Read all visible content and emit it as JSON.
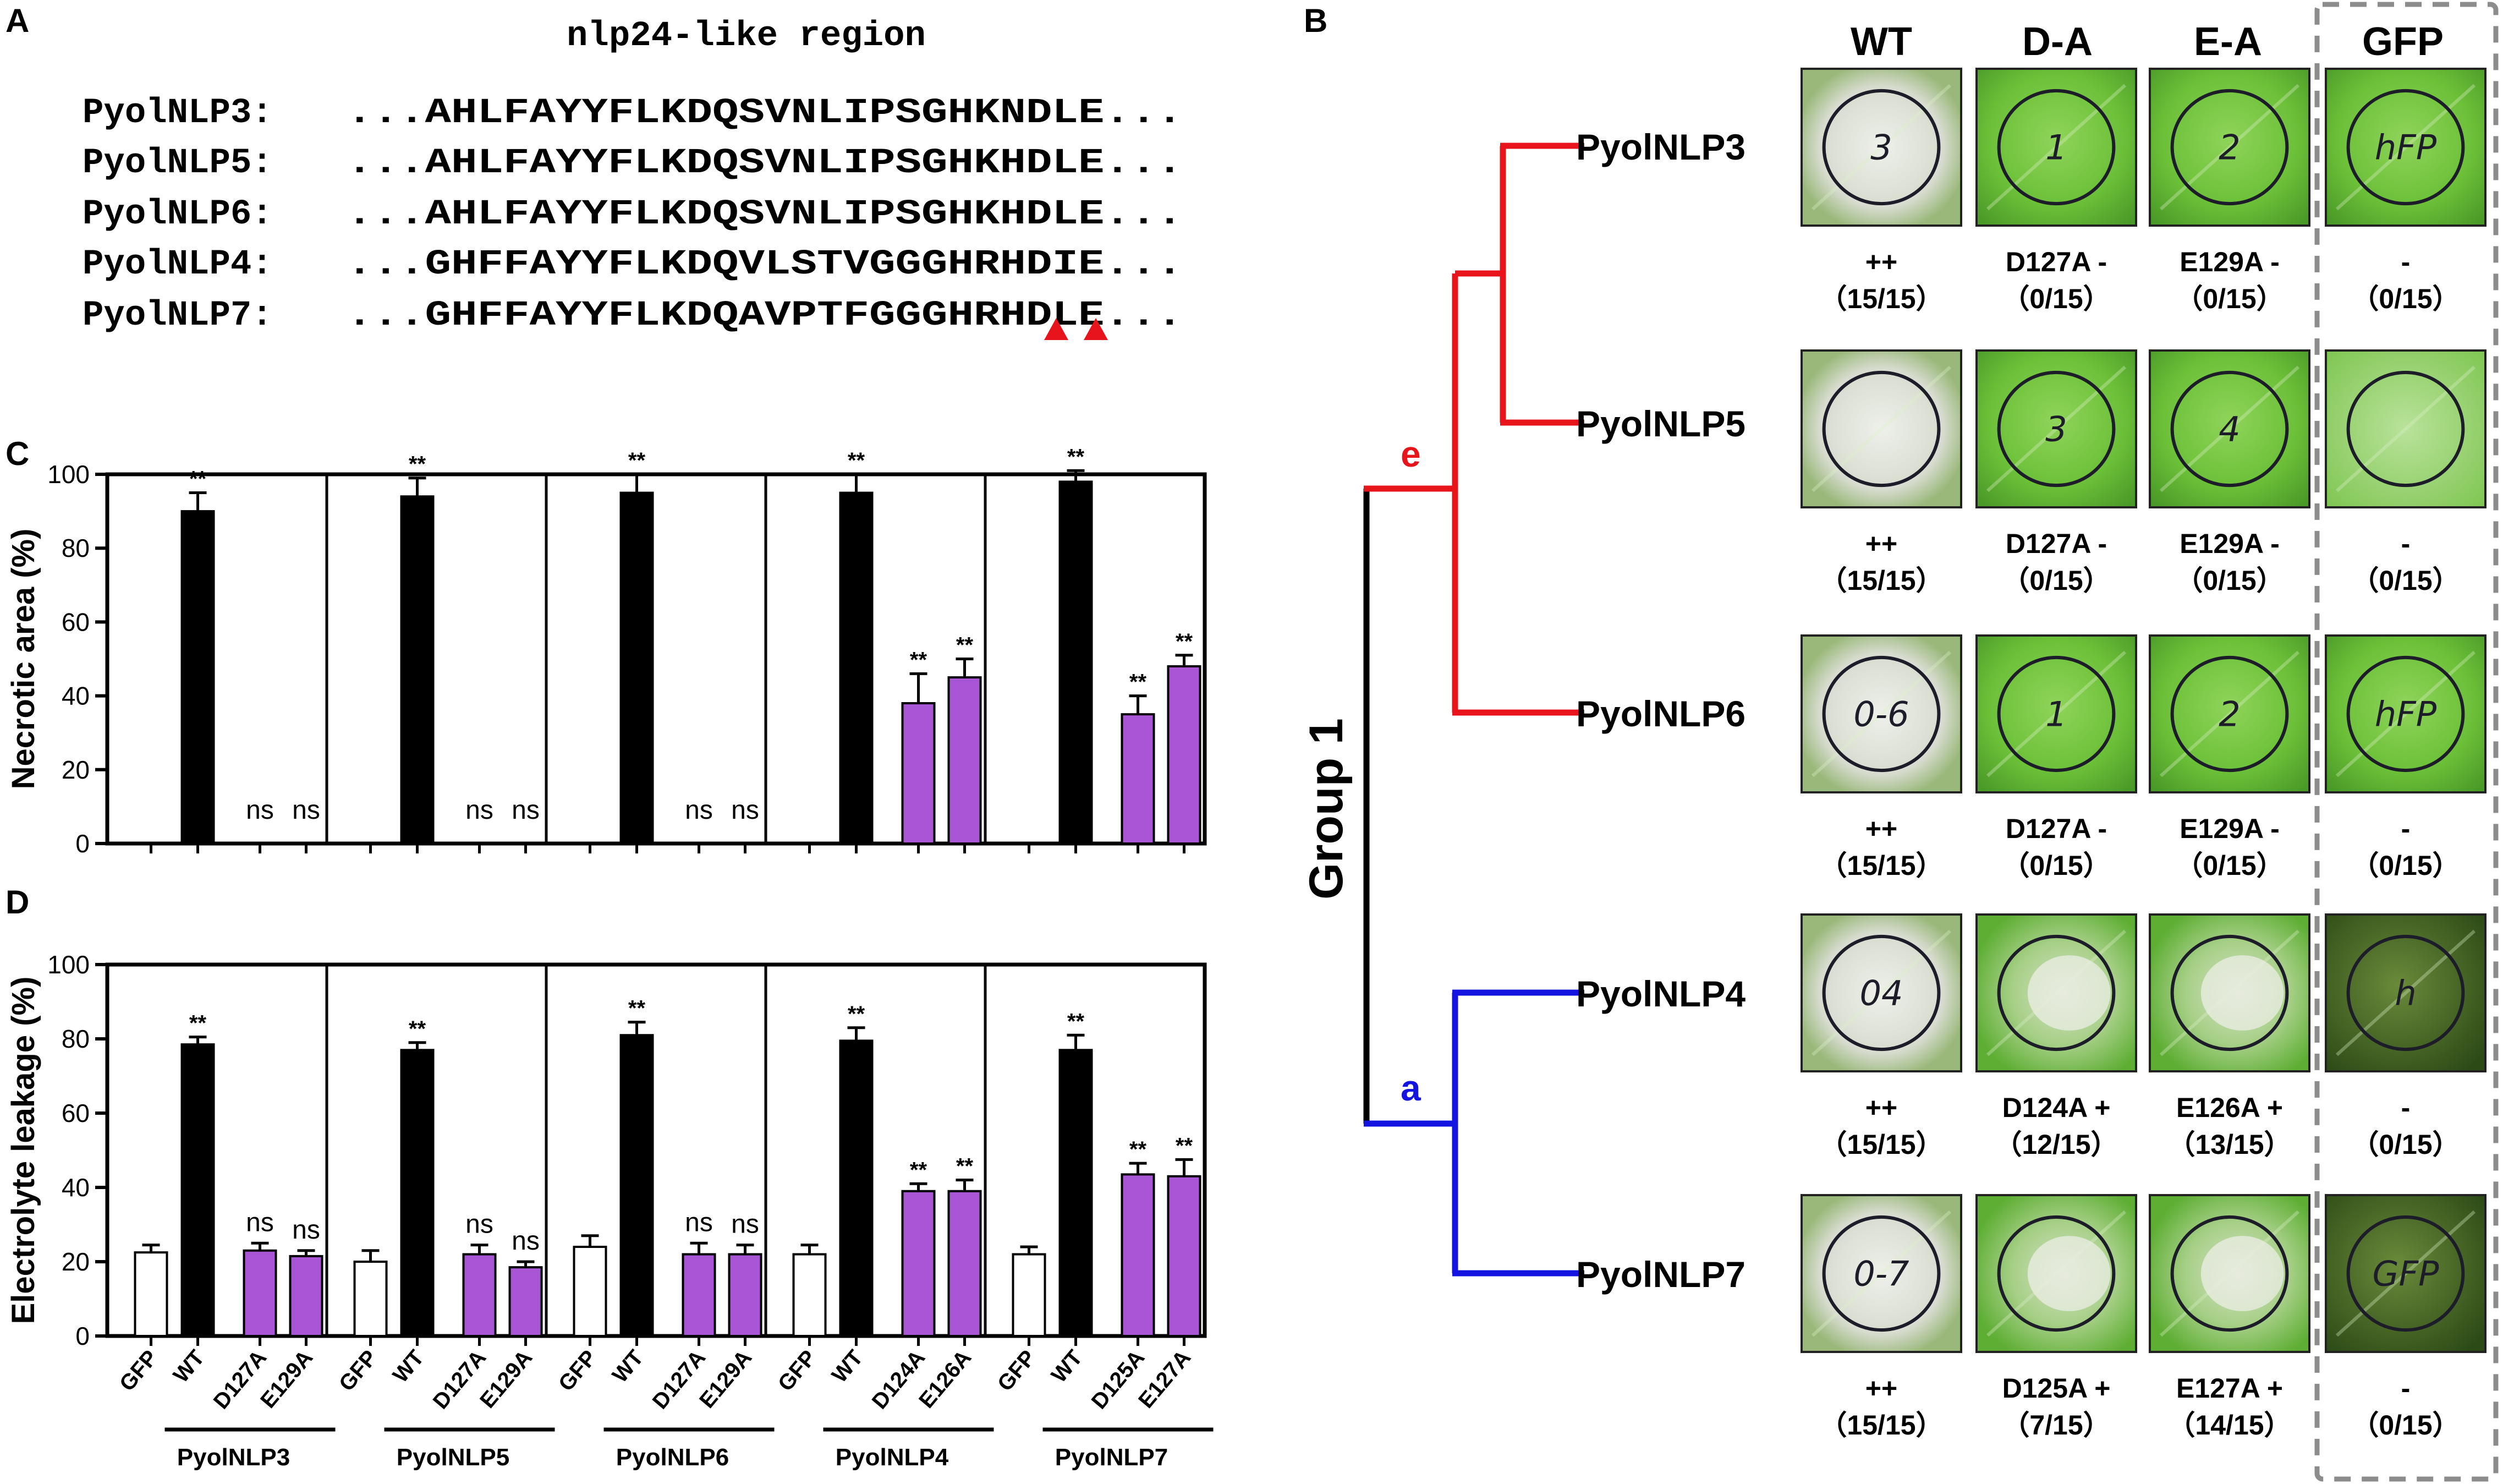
{
  "panels": {
    "a": "A",
    "b": "B",
    "c": "C",
    "d": "D"
  },
  "alignment": {
    "title": "nlp24-like region",
    "rows": [
      {
        "name": "PyolNLP3:",
        "seq": "...AHLFAYYFLKDQSVNLIPSGHKNDLE..."
      },
      {
        "name": "PyolNLP5:",
        "seq": "...AHLFAYYFLKDQSVNLIPSGHKHDLE..."
      },
      {
        "name": "PyolNLP6:",
        "seq": "...AHLFAYYFLKDQSVNLIPSGHKHDLE..."
      },
      {
        "name": "PyolNLP4:",
        "seq": "...GHFFAYYFLKDQVLSTVGGGHRHDIE..."
      },
      {
        "name": "PyolNLP7:",
        "seq": "...GHFFAYYFLKDQAVPTFGGGHRHDLE..."
      }
    ],
    "marker_color": "#e8141b"
  },
  "chart_data": [
    {
      "type": "bar",
      "ylabel": "Necrotic area (%)",
      "ylim": [
        0,
        100
      ],
      "yticks": [
        "0",
        "20",
        "40",
        "60",
        "80",
        "100"
      ],
      "groups": [
        {
          "name": "PyolNLP3",
          "values": [
            0,
            90,
            0,
            0
          ],
          "errors": [
            0,
            5,
            0,
            0
          ],
          "sig": [
            "",
            "**",
            "ns",
            "ns"
          ]
        },
        {
          "name": "PyolNLP5",
          "values": [
            0,
            94,
            0,
            0
          ],
          "errors": [
            0,
            5,
            0,
            0
          ],
          "sig": [
            "",
            "**",
            "ns",
            "ns"
          ]
        },
        {
          "name": "PyolNLP6",
          "values": [
            0,
            95,
            0,
            0
          ],
          "errors": [
            0,
            5,
            0,
            0
          ],
          "sig": [
            "",
            "**",
            "ns",
            "ns"
          ]
        },
        {
          "name": "PyolNLP4",
          "values": [
            0,
            95,
            38,
            45
          ],
          "errors": [
            0,
            5,
            8,
            5
          ],
          "sig": [
            "",
            "**",
            "**",
            "**"
          ]
        },
        {
          "name": "PyolNLP7",
          "values": [
            0,
            98,
            35,
            48
          ],
          "errors": [
            0,
            3,
            5,
            3
          ],
          "sig": [
            "",
            "**",
            "**",
            "**"
          ]
        }
      ]
    },
    {
      "type": "bar",
      "ylabel": "Electrolyte leakage (%)",
      "ylim": [
        0,
        100
      ],
      "yticks": [
        "0",
        "20",
        "40",
        "60",
        "80",
        "100"
      ],
      "groups": [
        {
          "name": "PyolNLP3",
          "categories": [
            "GFP",
            "WT",
            "D127A",
            "E129A"
          ],
          "values": [
            22.5,
            78.5,
            23,
            21.5
          ],
          "errors": [
            2,
            2,
            2,
            1.5
          ],
          "sig": [
            "",
            "**",
            "ns",
            "ns"
          ]
        },
        {
          "name": "PyolNLP5",
          "categories": [
            "GFP",
            "WT",
            "D127A",
            "E129A"
          ],
          "values": [
            20,
            77,
            22,
            18.5
          ],
          "errors": [
            3,
            2,
            2.5,
            1.5
          ],
          "sig": [
            "",
            "**",
            "ns",
            "ns"
          ]
        },
        {
          "name": "PyolNLP6",
          "categories": [
            "GFP",
            "WT",
            "D127A",
            "E129A"
          ],
          "values": [
            24,
            81,
            22,
            22
          ],
          "errors": [
            3,
            3.5,
            3,
            2.5
          ],
          "sig": [
            "",
            "**",
            "ns",
            "ns"
          ]
        },
        {
          "name": "PyolNLP4",
          "categories": [
            "GFP",
            "WT",
            "D124A",
            "E126A"
          ],
          "values": [
            22,
            79.5,
            39,
            39
          ],
          "errors": [
            2.5,
            3.5,
            2,
            3
          ],
          "sig": [
            "",
            "**",
            "**",
            "**"
          ]
        },
        {
          "name": "PyolNLP7",
          "categories": [
            "GFP",
            "WT",
            "D125A",
            "E127A"
          ],
          "values": [
            22,
            77,
            43.5,
            43
          ],
          "errors": [
            2,
            4,
            3,
            4.5
          ],
          "sig": [
            "",
            "**",
            "**",
            "**"
          ]
        }
      ]
    }
  ],
  "bar_colors": {
    "GFP": "#ffffff",
    "WT": "#000000",
    "mutant": "#a855d6"
  },
  "tree": {
    "group_label": "Group 1",
    "clades": [
      {
        "label": "e",
        "color": "#e8141b"
      },
      {
        "label": "a",
        "color": "#1414e0"
      }
    ],
    "leaves": [
      "PyolNLP3",
      "PyolNLP5",
      "PyolNLP6",
      "PyolNLP4",
      "PyolNLP7"
    ]
  },
  "photo_grid": {
    "columns": [
      "WT",
      "D-A",
      "E-A",
      "GFP"
    ],
    "rows": [
      {
        "cells": [
          {
            "line1": "++",
            "line2": "（15/15）",
            "leaf": "necrotic",
            "mark": "3"
          },
          {
            "line1": "D127A -",
            "line2": "（0/15）",
            "leaf": "green",
            "mark": "1"
          },
          {
            "line1": "E129A -",
            "line2": "（0/15）",
            "leaf": "green",
            "mark": "2"
          },
          {
            "line1": "-",
            "line2": "（0/15）",
            "leaf": "green",
            "mark": "hFP"
          }
        ]
      },
      {
        "cells": [
          {
            "line1": "++",
            "line2": "（15/15）",
            "leaf": "necrotic",
            "mark": ""
          },
          {
            "line1": "D127A -",
            "line2": "（0/15）",
            "leaf": "green",
            "mark": "3"
          },
          {
            "line1": "E129A -",
            "line2": "（0/15）",
            "leaf": "green",
            "mark": "4"
          },
          {
            "line1": "-",
            "line2": "（0/15）",
            "leaf": "pale",
            "mark": ""
          }
        ]
      },
      {
        "cells": [
          {
            "line1": "++",
            "line2": "（15/15）",
            "leaf": "necrotic",
            "mark": "0-6"
          },
          {
            "line1": "D127A -",
            "line2": "（0/15）",
            "leaf": "green",
            "mark": "1"
          },
          {
            "line1": "E129A -",
            "line2": "（0/15）",
            "leaf": "green",
            "mark": "2"
          },
          {
            "line1": "-",
            "line2": "（0/15）",
            "leaf": "green",
            "mark": "hFP"
          }
        ]
      },
      {
        "cells": [
          {
            "line1": "++",
            "line2": "（15/15）",
            "leaf": "necrotic",
            "mark": "04"
          },
          {
            "line1": "D124A +",
            "line2": "（12/15）",
            "leaf": "partial",
            "mark": ""
          },
          {
            "line1": "E126A +",
            "line2": "（13/15）",
            "leaf": "partial",
            "mark": ""
          },
          {
            "line1": "-",
            "line2": "（0/15）",
            "leaf": "dark",
            "mark": "h"
          }
        ]
      },
      {
        "cells": [
          {
            "line1": "++",
            "line2": "（15/15）",
            "leaf": "necrotic",
            "mark": "0-7"
          },
          {
            "line1": "D125A +",
            "line2": "（7/15）",
            "leaf": "partial",
            "mark": ""
          },
          {
            "line1": "E127A +",
            "line2": "（14/15）",
            "leaf": "partial",
            "mark": ""
          },
          {
            "line1": "-",
            "line2": "（0/15）",
            "leaf": "dark",
            "mark": "GFP"
          }
        ]
      }
    ]
  }
}
